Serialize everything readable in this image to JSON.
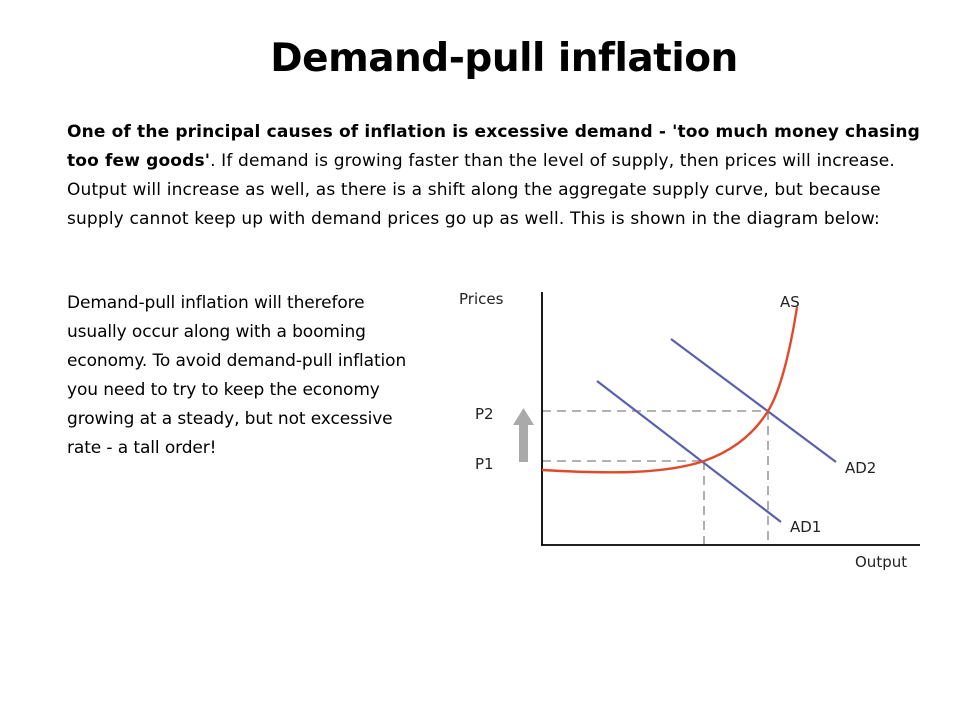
{
  "slide": {
    "title": "Demand-pull inflation",
    "intro_lead": "One of the principal causes of inflation is excessive demand - 'too much money chasing too few goods'",
    "intro_rest": ". If demand is growing faster than the level of supply, then prices will increase. Output will increase as well, as there is a shift along the aggregate supply curve, but because supply cannot keep up with demand prices go up as well. This is shown in the diagram below:",
    "side_text": "Demand-pull inflation will therefore usually occur along with a booming economy. To avoid demand-pull inflation you need to try to keep the economy growing at a steady, but not excessive rate - a tall order!"
  },
  "diagram": {
    "y_axis_label": "Prices",
    "x_axis_label": "Output",
    "supply_label": "AS",
    "demand_labels": [
      "AD1",
      "AD2"
    ],
    "price_levels": [
      "P1",
      "P2"
    ],
    "colors": {
      "axis": "#000000",
      "supply_curve": "#e2492b",
      "demand_curves": "#5b5fb0",
      "guides": "#9a9a9a",
      "arrow": "#aaaaaa"
    }
  }
}
